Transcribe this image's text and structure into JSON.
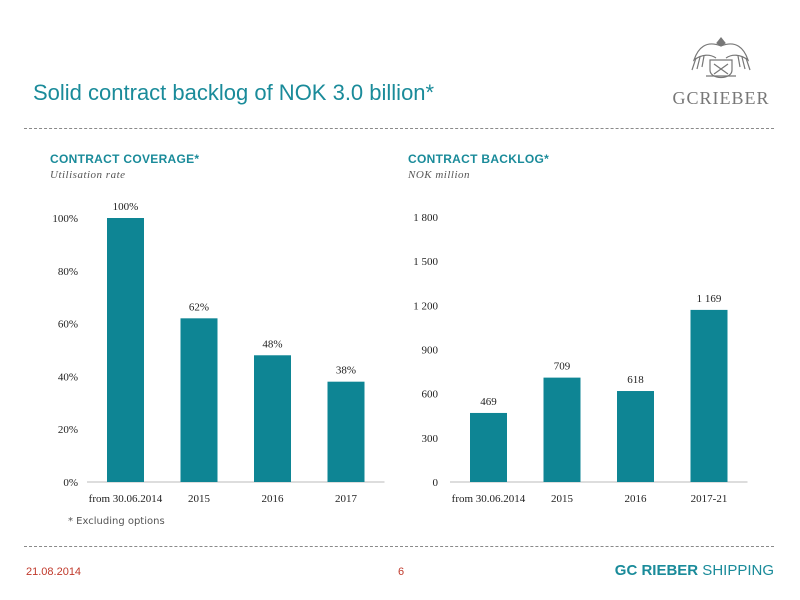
{
  "title": "Solid contract backlog of NOK 3.0 billion*",
  "logo": {
    "text": "GCRIEBER",
    "icon": "crest-eagle-icon"
  },
  "colors": {
    "accent": "#1a8b9a",
    "bar": "#0e8594",
    "footer_red": "#c0392b"
  },
  "chart_data": [
    {
      "type": "bar",
      "title": "CONTRACT COVERAGE*",
      "subtitle": "Utilisation rate",
      "categories": [
        "from 30.06.2014",
        "2015",
        "2016",
        "2017"
      ],
      "values": [
        100,
        62,
        48,
        38
      ],
      "data_labels": [
        "100%",
        "62%",
        "48%",
        "38%"
      ],
      "ylim": [
        0,
        100
      ],
      "yticks": [
        0,
        20,
        40,
        60,
        80,
        100
      ],
      "ytick_labels": [
        "0%",
        "20%",
        "40%",
        "60%",
        "80%",
        "100%"
      ],
      "grid": false
    },
    {
      "type": "bar",
      "title": "CONTRACT BACKLOG*",
      "subtitle": "NOK million",
      "categories": [
        "from 30.06.2014",
        "2015",
        "2016",
        "2017-21"
      ],
      "values": [
        469,
        709,
        618,
        1169
      ],
      "data_labels": [
        "469",
        "709",
        "618",
        "1 169"
      ],
      "ylim": [
        0,
        1800
      ],
      "yticks": [
        0,
        300,
        600,
        900,
        1200,
        1500,
        1800
      ],
      "ytick_labels": [
        "0",
        "300",
        "600",
        "900",
        "1 200",
        "1 500",
        "1 800"
      ],
      "grid": false
    }
  ],
  "footnote": "* Excluding options",
  "footer": {
    "date": "21.08.2014",
    "page": "6",
    "brand_bold": "GC RIEBER",
    "brand_rest": " SHIPPING"
  }
}
